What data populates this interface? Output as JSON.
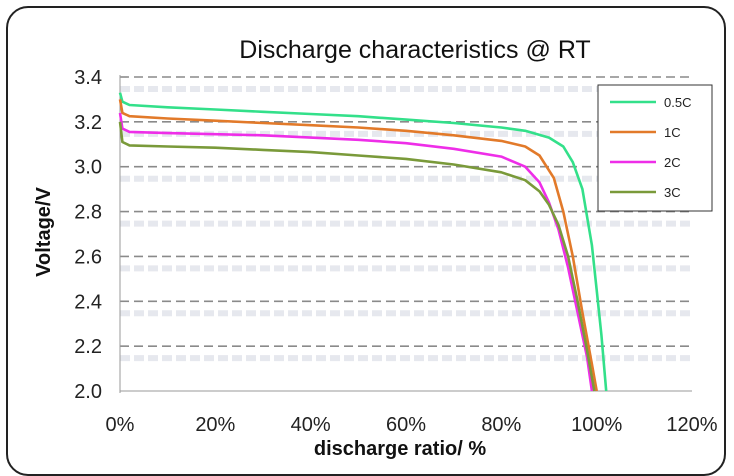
{
  "chart_data": {
    "type": "line",
    "title": "Discharge characteristics @ RT",
    "xlabel": "discharge ratio/ %",
    "ylabel": "Voltage/V",
    "xlim": [
      0,
      120
    ],
    "ylim": [
      2.0,
      3.4
    ],
    "x_ticks": [
      "0%",
      "20%",
      "40%",
      "60%",
      "80%",
      "100%",
      "120%"
    ],
    "y_ticks": [
      "2.0",
      "2.2",
      "2.4",
      "2.6",
      "2.8",
      "3.0",
      "3.2",
      "3.4"
    ],
    "grid": "horizontal dashed",
    "legend_position": "top-right",
    "series": [
      {
        "name": "0.5C",
        "color": "#33e08a",
        "points": [
          [
            0,
            3.33
          ],
          [
            0.5,
            3.29
          ],
          [
            2,
            3.275
          ],
          [
            10,
            3.265
          ],
          [
            20,
            3.255
          ],
          [
            30,
            3.245
          ],
          [
            40,
            3.235
          ],
          [
            50,
            3.225
          ],
          [
            60,
            3.21
          ],
          [
            70,
            3.195
          ],
          [
            80,
            3.175
          ],
          [
            85,
            3.16
          ],
          [
            90,
            3.13
          ],
          [
            93,
            3.09
          ],
          [
            95,
            3.02
          ],
          [
            97,
            2.9
          ],
          [
            99,
            2.65
          ],
          [
            100,
            2.45
          ],
          [
            101,
            2.25
          ],
          [
            102,
            2.0
          ]
        ]
      },
      {
        "name": "1C",
        "color": "#e27a2a",
        "points": [
          [
            0,
            3.3
          ],
          [
            0.5,
            3.24
          ],
          [
            2,
            3.225
          ],
          [
            10,
            3.215
          ],
          [
            20,
            3.205
          ],
          [
            30,
            3.195
          ],
          [
            40,
            3.185
          ],
          [
            50,
            3.175
          ],
          [
            60,
            3.16
          ],
          [
            70,
            3.14
          ],
          [
            80,
            3.115
          ],
          [
            85,
            3.09
          ],
          [
            88,
            3.05
          ],
          [
            91,
            2.95
          ],
          [
            93,
            2.8
          ],
          [
            95,
            2.6
          ],
          [
            97,
            2.35
          ],
          [
            99,
            2.12
          ],
          [
            100,
            2.0
          ]
        ]
      },
      {
        "name": "2C",
        "color": "#ee2ee8",
        "points": [
          [
            0,
            3.24
          ],
          [
            0.5,
            3.17
          ],
          [
            2,
            3.155
          ],
          [
            10,
            3.15
          ],
          [
            20,
            3.145
          ],
          [
            30,
            3.14
          ],
          [
            40,
            3.13
          ],
          [
            50,
            3.12
          ],
          [
            60,
            3.105
          ],
          [
            70,
            3.08
          ],
          [
            80,
            3.045
          ],
          [
            85,
            3.0
          ],
          [
            88,
            2.93
          ],
          [
            90,
            2.84
          ],
          [
            92,
            2.72
          ],
          [
            94,
            2.55
          ],
          [
            96,
            2.35
          ],
          [
            98,
            2.15
          ],
          [
            99,
            2.0
          ]
        ]
      },
      {
        "name": "3C",
        "color": "#7a9a3a",
        "points": [
          [
            0,
            3.2
          ],
          [
            0.5,
            3.11
          ],
          [
            2,
            3.095
          ],
          [
            10,
            3.09
          ],
          [
            20,
            3.085
          ],
          [
            30,
            3.075
          ],
          [
            40,
            3.065
          ],
          [
            50,
            3.05
          ],
          [
            60,
            3.035
          ],
          [
            70,
            3.01
          ],
          [
            80,
            2.975
          ],
          [
            85,
            2.94
          ],
          [
            88,
            2.89
          ],
          [
            90,
            2.83
          ],
          [
            92,
            2.74
          ],
          [
            94,
            2.6
          ],
          [
            96,
            2.4
          ],
          [
            98,
            2.18
          ],
          [
            99.5,
            2.0
          ]
        ]
      }
    ]
  }
}
